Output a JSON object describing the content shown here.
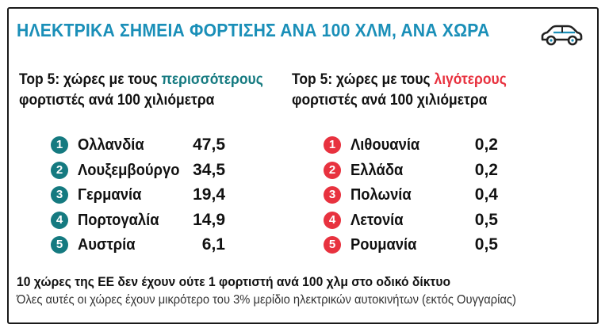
{
  "title": "ΗΛΕΚΤΡΙΚΑ ΣΗΜΕΙΑ ΦΟΡΤΙΣΗΣ ΑΝΑ 100 ΧΛΜ, ΑΝΑ ΧΩΡΑ",
  "icon": "car-icon",
  "colors": {
    "accent": "#1a8fb8",
    "teal": "#157a80",
    "red": "#e8323f"
  },
  "left": {
    "heading_prefix": "Top 5: χώρες με τους ",
    "heading_highlight": "περισσότερους",
    "heading_line2": "φορτιστές ανά 100 χιλιόμετρα",
    "items": [
      {
        "rank": "1",
        "country": "Ολλανδία",
        "value": "47,5"
      },
      {
        "rank": "2",
        "country": "Λουξεμβούργο",
        "value": "34,5"
      },
      {
        "rank": "3",
        "country": "Γερμανία",
        "value": "19,4"
      },
      {
        "rank": "4",
        "country": "Πορτογαλία",
        "value": "14,9"
      },
      {
        "rank": "5",
        "country": "Αυστρία",
        "value": "6,1"
      }
    ]
  },
  "right": {
    "heading_prefix": "Top 5: χώρες με τους ",
    "heading_highlight": "λιγότερους",
    "heading_line2": "φορτιστές ανά 100 χιλιόμετρα",
    "items": [
      {
        "rank": "1",
        "country": "Λιθουανία",
        "value": "0,2"
      },
      {
        "rank": "2",
        "country": "Ελλάδα",
        "value": "0,2"
      },
      {
        "rank": "3",
        "country": "Πολωνία",
        "value": "0,4"
      },
      {
        "rank": "4",
        "country": "Λετονία",
        "value": "0,5"
      },
      {
        "rank": "5",
        "country": "Ρουμανία",
        "value": "0,5"
      }
    ]
  },
  "footer": {
    "bold": "10 χώρες της ΕΕ δεν έχουν ούτε 1 φορτιστή ανά 100 χλμ στο οδικό δίκτυο",
    "note": "Όλες αυτές οι χώρες έχουν μικρότερο του 3% μερίδιο ηλεκτρικών αυτοκινήτων (εκτός Ουγγαρίας)"
  }
}
